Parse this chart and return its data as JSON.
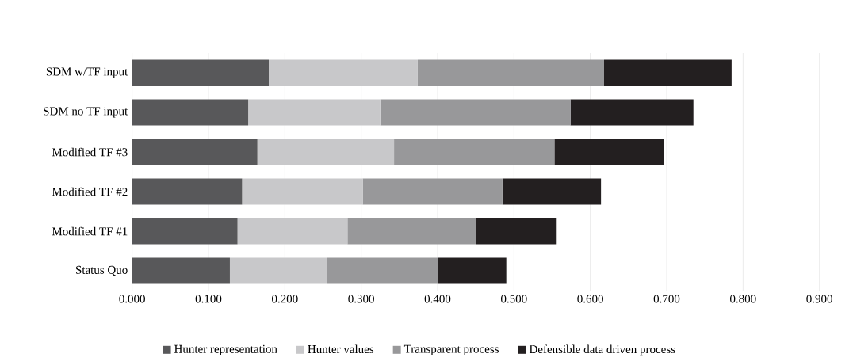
{
  "chart_data": {
    "type": "bar",
    "orientation": "horizontal",
    "stacked": true,
    "categories": [
      "SDM w/TF input",
      "SDM no TF input",
      "Modified TF #3",
      "Modified TF #2",
      "Modified TF #1",
      "Status Quo"
    ],
    "series": [
      {
        "name": "Hunter representation",
        "color": "#58585a",
        "values": [
          0.179,
          0.152,
          0.164,
          0.144,
          0.138,
          0.128
        ]
      },
      {
        "name": "Hunter values",
        "color": "#c8c8ca",
        "values": [
          0.195,
          0.173,
          0.179,
          0.158,
          0.144,
          0.127
        ]
      },
      {
        "name": "Transparent process",
        "color": "#98989a",
        "values": [
          0.244,
          0.249,
          0.21,
          0.183,
          0.168,
          0.146
        ]
      },
      {
        "name": "Defensible data driven process",
        "color": "#231f20",
        "values": [
          0.167,
          0.161,
          0.143,
          0.129,
          0.106,
          0.089
        ]
      }
    ],
    "xlim": [
      0,
      0.9
    ],
    "xticks": [
      {
        "value": 0,
        "label": "0.000"
      },
      {
        "value": 0.1,
        "label": "0.100"
      },
      {
        "value": 0.2,
        "label": "0.200"
      },
      {
        "value": 0.3,
        "label": "0.300"
      },
      {
        "value": 0.4,
        "label": "0.400"
      },
      {
        "value": 0.5,
        "label": "0.500"
      },
      {
        "value": 0.6,
        "label": "0.600"
      },
      {
        "value": 0.7,
        "label": "0.700"
      },
      {
        "value": 0.8,
        "label": "0.800"
      },
      {
        "value": 0.9,
        "label": "0.900"
      }
    ],
    "grid": "x",
    "legend": "bottom"
  }
}
